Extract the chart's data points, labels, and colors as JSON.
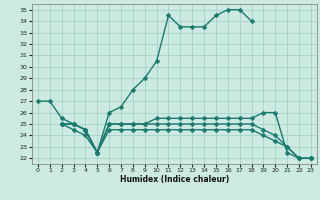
{
  "xlabel": "Humidex (Indice chaleur)",
  "xlim": [
    -0.5,
    23.5
  ],
  "ylim": [
    21.5,
    35.5
  ],
  "xticks": [
    0,
    1,
    2,
    3,
    4,
    5,
    6,
    7,
    8,
    9,
    10,
    11,
    12,
    13,
    14,
    15,
    16,
    17,
    18,
    19,
    20,
    21,
    22,
    23
  ],
  "yticks": [
    22,
    23,
    24,
    25,
    26,
    27,
    28,
    29,
    30,
    31,
    32,
    33,
    34,
    35
  ],
  "bg_color": "#cce9e2",
  "grid_color": "#9ecec5",
  "line_color": "#1a7a6e",
  "line1_x": [
    0,
    1,
    2,
    3,
    4,
    5,
    6,
    7,
    8,
    9,
    10,
    11,
    12,
    13,
    14,
    15,
    16,
    17,
    18
  ],
  "line1_y": [
    27,
    27,
    25.5,
    25,
    24.5,
    22.5,
    26,
    26.5,
    28,
    29,
    30.5,
    34.5,
    33.5,
    33.5,
    33.5,
    34.5,
    35,
    35,
    34
  ],
  "line2_x": [
    2,
    3,
    4,
    5,
    6,
    7,
    8,
    9,
    10,
    11,
    12,
    13,
    14,
    15,
    16,
    17,
    18,
    19,
    20,
    21,
    22,
    23
  ],
  "line2_y": [
    25,
    25,
    24.5,
    22.5,
    25,
    25,
    25,
    25,
    25.5,
    25.5,
    25.5,
    25.5,
    25.5,
    25.5,
    25.5,
    25.5,
    25.5,
    26,
    26,
    22.5,
    22,
    22
  ],
  "line3_x": [
    2,
    3,
    4,
    5,
    6,
    7,
    8,
    9,
    10,
    11,
    12,
    13,
    14,
    15,
    16,
    17,
    18,
    19,
    20,
    21,
    22,
    23
  ],
  "line3_y": [
    25,
    25,
    24.5,
    22.5,
    25,
    25,
    25,
    25,
    25,
    25,
    25,
    25,
    25,
    25,
    25,
    25,
    25,
    24.5,
    24,
    23,
    22,
    22
  ],
  "line4_x": [
    2,
    3,
    4,
    5,
    6,
    7,
    8,
    9,
    10,
    11,
    12,
    13,
    14,
    15,
    16,
    17,
    18,
    19,
    20,
    21,
    22,
    23
  ],
  "line4_y": [
    25,
    24.5,
    24,
    22.5,
    24.5,
    24.5,
    24.5,
    24.5,
    24.5,
    24.5,
    24.5,
    24.5,
    24.5,
    24.5,
    24.5,
    24.5,
    24.5,
    24,
    23.5,
    23,
    22,
    22
  ],
  "marker_size": 2.5,
  "line_width": 1.0
}
